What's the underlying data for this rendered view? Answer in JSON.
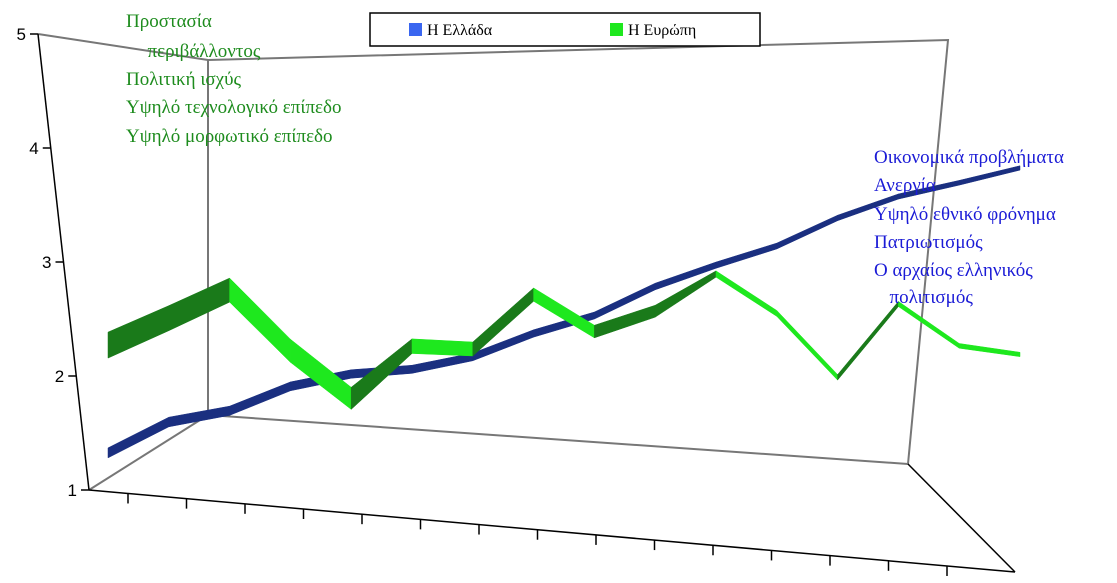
{
  "chart_data": {
    "type": "line",
    "style": "3d-ribbon",
    "y_ticks": [
      "1",
      "2",
      "3",
      "4",
      "5"
    ],
    "ylim": [
      1,
      5
    ],
    "x_tick_count": 15,
    "grid": false,
    "legend_placement": "top-center",
    "series": [
      {
        "name": "Η Ελλάδα",
        "color": "#3a66f0",
        "shade": "#1a2f80",
        "values": [
          2.58,
          2.82,
          2.88,
          3.06,
          3.13,
          3.13,
          3.2,
          3.37,
          3.49,
          3.71,
          3.86,
          3.99,
          4.2,
          4.35,
          4.43,
          4.52
        ]
      },
      {
        "name": "Η Ευρώπη",
        "color": "#1ee81e",
        "shade": "#1a7a1a",
        "values": [
          3.64,
          3.84,
          4.05,
          3.45,
          2.97,
          3.37,
          3.3,
          3.75,
          3.37,
          3.51,
          3.78,
          3.38,
          2.76,
          3.38,
          2.96,
          2.84
        ]
      }
    ],
    "annotations_left": [
      "Προστασία",
      "  περιβάλλοντος",
      "Πολιτική ισχύς",
      "Υψηλό τεχνολογικό επίπεδο",
      "Υψηλό μορφωτικό επίπεδο"
    ],
    "annotations_right": [
      "Οικονομικά προβλήματα",
      "Ανεργία",
      "Υψηλό εθνικό φρόνημα",
      "Πατριωτισμός",
      "Ο αρχαίος ελληνικός",
      "  πολιτισμός"
    ],
    "annotation_colors": {
      "left": "#1e8c1e",
      "right": "#1b1bd6"
    }
  }
}
